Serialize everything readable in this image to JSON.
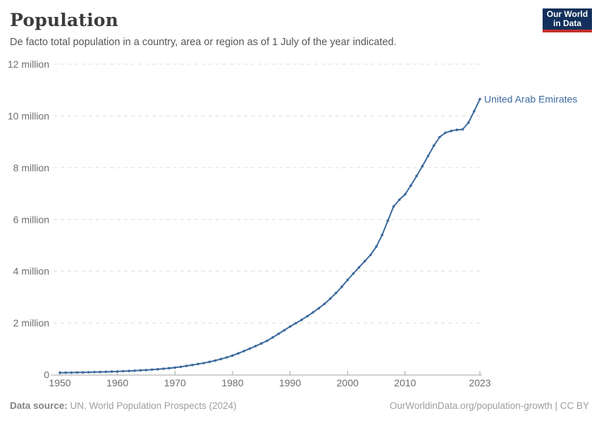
{
  "header": {
    "title": "Population",
    "subtitle": "De facto total population in a country, area or region as of 1 July of the year indicated.",
    "logo": {
      "line1": "Our World",
      "line2": "in Data",
      "bg_color": "#12305b",
      "accent_color": "#c5302c"
    }
  },
  "chart_data": {
    "type": "line",
    "title": "Population",
    "subtitle": "De facto total population in a country, area or region as of 1 July of the year indicated.",
    "unit": "million people",
    "xlabel": "",
    "ylabel": "",
    "xlim": [
      1950,
      2023
    ],
    "ylim": [
      0,
      12
    ],
    "grid": "dashed-horizontal",
    "legend_position": "end-of-line-label",
    "x_ticks": [
      1950,
      1960,
      1970,
      1980,
      1990,
      2000,
      2010,
      2023
    ],
    "x_tick_labels": [
      "1950",
      "1960",
      "1970",
      "1980",
      "1990",
      "2000",
      "2010",
      "2023"
    ],
    "y_ticks": [
      0,
      2,
      4,
      6,
      8,
      10,
      12
    ],
    "y_tick_labels": [
      "0",
      "2 million",
      "4 million",
      "6 million",
      "8 million",
      "10 million",
      "12 million"
    ],
    "series": [
      {
        "name": "United Arab Emirates",
        "color": "#3d6a9e",
        "x": [
          1950,
          1951,
          1952,
          1953,
          1954,
          1955,
          1956,
          1957,
          1958,
          1959,
          1960,
          1961,
          1962,
          1963,
          1964,
          1965,
          1966,
          1967,
          1968,
          1969,
          1970,
          1971,
          1972,
          1973,
          1974,
          1975,
          1976,
          1977,
          1978,
          1979,
          1980,
          1981,
          1982,
          1983,
          1984,
          1985,
          1986,
          1987,
          1988,
          1989,
          1990,
          1991,
          1992,
          1993,
          1994,
          1995,
          1996,
          1997,
          1998,
          1999,
          2000,
          2001,
          2002,
          2003,
          2004,
          2005,
          2006,
          2007,
          2008,
          2009,
          2010,
          2011,
          2012,
          2013,
          2014,
          2015,
          2016,
          2017,
          2018,
          2019,
          2020,
          2021,
          2022,
          2023
        ],
        "values": [
          0.075,
          0.079,
          0.083,
          0.087,
          0.091,
          0.095,
          0.1,
          0.106,
          0.112,
          0.119,
          0.126,
          0.135,
          0.145,
          0.156,
          0.168,
          0.181,
          0.196,
          0.213,
          0.232,
          0.253,
          0.276,
          0.306,
          0.34,
          0.376,
          0.413,
          0.45,
          0.495,
          0.547,
          0.606,
          0.671,
          0.741,
          0.826,
          0.916,
          1.01,
          1.107,
          1.206,
          1.31,
          1.44,
          1.58,
          1.72,
          1.86,
          1.99,
          2.12,
          2.26,
          2.41,
          2.57,
          2.74,
          2.94,
          3.16,
          3.4,
          3.66,
          3.91,
          4.15,
          4.39,
          4.63,
          4.95,
          5.4,
          5.95,
          6.5,
          6.76,
          6.97,
          7.31,
          7.68,
          8.06,
          8.45,
          8.85,
          9.18,
          9.35,
          9.42,
          9.46,
          9.48,
          9.74,
          10.18,
          10.65
        ]
      }
    ],
    "end_label": "United Arab Emirates",
    "colors": {
      "line": "#3d6a9e",
      "gridline": "#dcdcdc",
      "axis": "#a3a3a3",
      "tick_label": "#6e6e6e",
      "entity_label": "#3d6a9e"
    }
  },
  "footer": {
    "source_label": "Data source:",
    "source_text": " UN, World Population Prospects (2024)",
    "link_text": "OurWorldinData.org/population-growth | CC BY"
  }
}
